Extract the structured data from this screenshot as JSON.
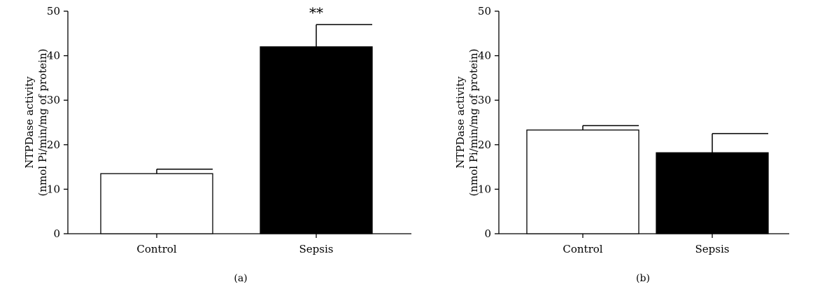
{
  "chart_data": [
    {
      "type": "bar",
      "panel_label": "(a)",
      "categories": [
        "Control",
        "Sepsis"
      ],
      "values": [
        13.5,
        42
      ],
      "errors": [
        1,
        5
      ],
      "bar_fills": [
        "#ffffff",
        "#000000"
      ],
      "significance": [
        "",
        "**"
      ],
      "ylabel_lines": [
        "NTPDase activity",
        "(nmol Pi/min/mg of protein)"
      ],
      "ylim": [
        0,
        50
      ],
      "yticks": [
        0,
        10,
        20,
        30,
        40,
        50
      ],
      "grid": false
    },
    {
      "type": "bar",
      "panel_label": "(b)",
      "categories": [
        "Control",
        "Sepsis"
      ],
      "values": [
        23.3,
        18.2
      ],
      "errors": [
        1,
        4.3
      ],
      "bar_fills": [
        "#ffffff",
        "#000000"
      ],
      "significance": [
        "",
        ""
      ],
      "ylabel_lines": [
        "NTPDase activity",
        "(nmol Pi/min/mg of protein)"
      ],
      "ylim": [
        0,
        50
      ],
      "yticks": [
        0,
        10,
        20,
        30,
        40,
        50
      ],
      "grid": false
    }
  ]
}
